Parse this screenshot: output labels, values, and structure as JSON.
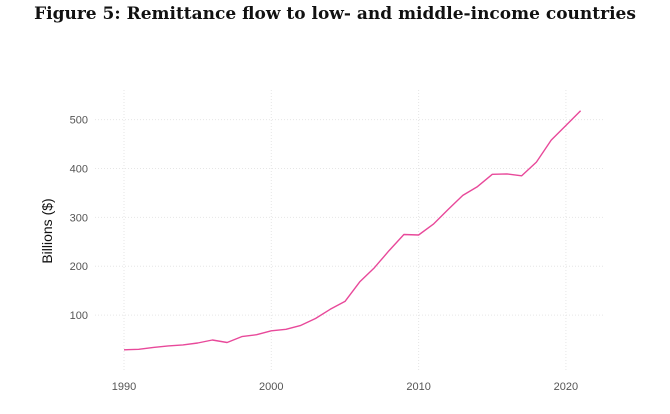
{
  "chart_data": {
    "type": "line",
    "title": "Figure 5: Remittance flow to low- and middle-income countries",
    "xlabel": "",
    "ylabel": "Billions ($)",
    "x": [
      1990,
      1991,
      1992,
      1993,
      1994,
      1995,
      1996,
      1997,
      1998,
      1999,
      2000,
      2001,
      2002,
      2003,
      2004,
      2005,
      2006,
      2007,
      2008,
      2009,
      2010,
      2011,
      2012,
      2013,
      2014,
      2015,
      2016,
      2017,
      2018,
      2019,
      2020,
      2021
    ],
    "series": [
      {
        "values": [
          29,
          30,
          34,
          37,
          39,
          43,
          49,
          44,
          56,
          60,
          68,
          71,
          79,
          93,
          112,
          128,
          168,
          197,
          232,
          265,
          264,
          286,
          316,
          345,
          363,
          388,
          389,
          385,
          413,
          458,
          488,
          518
        ]
      }
    ],
    "xticks": [
      1990,
      2000,
      2010,
      2020
    ],
    "yticks": [
      100,
      200,
      300,
      400,
      500
    ],
    "xlim": [
      1990,
      2021
    ],
    "ylim": [
      0,
      550
    ],
    "grid": true,
    "legend": "none",
    "line_color": "#e8499a"
  }
}
